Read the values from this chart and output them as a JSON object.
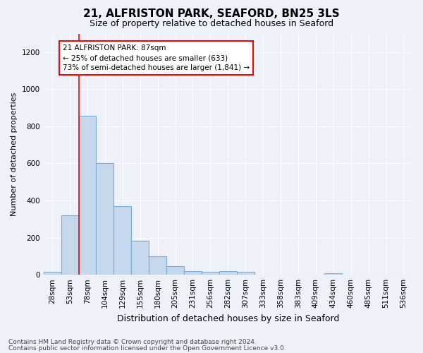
{
  "title": "21, ALFRISTON PARK, SEAFORD, BN25 3LS",
  "subtitle": "Size of property relative to detached houses in Seaford",
  "xlabel": "Distribution of detached houses by size in Seaford",
  "ylabel": "Number of detached properties",
  "bar_color": "#c5d8ed",
  "bar_edge_color": "#7aadd4",
  "background_color": "#eef2f8",
  "categories": [
    "28sqm",
    "53sqm",
    "78sqm",
    "104sqm",
    "129sqm",
    "155sqm",
    "180sqm",
    "205sqm",
    "231sqm",
    "256sqm",
    "282sqm",
    "307sqm",
    "333sqm",
    "358sqm",
    "383sqm",
    "409sqm",
    "434sqm",
    "460sqm",
    "485sqm",
    "511sqm",
    "536sqm"
  ],
  "values": [
    15,
    320,
    855,
    600,
    370,
    185,
    100,
    47,
    20,
    15,
    20,
    15,
    0,
    0,
    0,
    0,
    10,
    0,
    0,
    0,
    0
  ],
  "ylim": [
    0,
    1300
  ],
  "yticks": [
    0,
    200,
    400,
    600,
    800,
    1000,
    1200
  ],
  "red_line_x": 2.0,
  "annotation_text": "21 ALFRISTON PARK: 87sqm\n← 25% of detached houses are smaller (633)\n73% of semi-detached houses are larger (1,841) →",
  "footnote1": "Contains HM Land Registry data © Crown copyright and database right 2024.",
  "footnote2": "Contains public sector information licensed under the Open Government Licence v3.0.",
  "title_fontsize": 11,
  "subtitle_fontsize": 9,
  "ylabel_fontsize": 8,
  "xlabel_fontsize": 9,
  "tick_fontsize": 7.5,
  "footnote_fontsize": 6.5
}
